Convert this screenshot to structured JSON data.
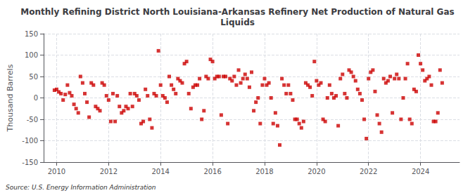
{
  "chart_data": {
    "type": "scatter",
    "title": "Monthly Refining District North Louisiana-Arkansas Refinery Net Production of Natural Gas\nLiquids",
    "ylabel": "Thousand Barrels",
    "annotation": "Source: U.S. Energy Information Administration",
    "color": "#cc0000",
    "marker": "square",
    "grid": true,
    "xlim": [
      2009.5,
      2025.5
    ],
    "xticks": [
      2010,
      2012,
      2014,
      2016,
      2018,
      2020,
      2022,
      2024
    ],
    "ylim": [
      -150,
      150
    ],
    "yticks": [
      -150,
      -100,
      -50,
      0,
      50,
      100,
      150
    ],
    "x": [
      2009.917,
      2010.0,
      2010.083,
      2010.167,
      2010.25,
      2010.333,
      2010.417,
      2010.5,
      2010.583,
      2010.667,
      2010.75,
      2010.833,
      2010.917,
      2011.0,
      2011.083,
      2011.167,
      2011.25,
      2011.333,
      2011.417,
      2011.5,
      2011.583,
      2011.667,
      2011.75,
      2011.833,
      2011.917,
      2012.0,
      2012.083,
      2012.167,
      2012.25,
      2012.333,
      2012.417,
      2012.5,
      2012.583,
      2012.667,
      2012.75,
      2012.833,
      2012.917,
      2013.0,
      2013.083,
      2013.167,
      2013.25,
      2013.333,
      2013.417,
      2013.5,
      2013.583,
      2013.667,
      2013.75,
      2013.833,
      2013.917,
      2014.0,
      2014.083,
      2014.167,
      2014.25,
      2014.333,
      2014.417,
      2014.5,
      2014.583,
      2014.667,
      2014.75,
      2014.833,
      2014.917,
      2015.0,
      2015.083,
      2015.167,
      2015.25,
      2015.333,
      2015.417,
      2015.5,
      2015.583,
      2015.667,
      2015.75,
      2015.833,
      2015.917,
      2016.0,
      2016.083,
      2016.167,
      2016.25,
      2016.333,
      2016.417,
      2016.5,
      2016.583,
      2016.667,
      2016.75,
      2016.833,
      2016.917,
      2017.0,
      2017.083,
      2017.167,
      2017.25,
      2017.333,
      2017.417,
      2017.5,
      2017.583,
      2017.667,
      2017.75,
      2017.833,
      2017.917,
      2018.0,
      2018.083,
      2018.167,
      2018.25,
      2018.333,
      2018.417,
      2018.5,
      2018.583,
      2018.667,
      2018.75,
      2018.833,
      2018.917,
      2019.0,
      2019.083,
      2019.167,
      2019.25,
      2019.333,
      2019.417,
      2019.5,
      2019.583,
      2019.667,
      2019.75,
      2019.833,
      2019.917,
      2020.0,
      2020.083,
      2020.167,
      2020.25,
      2020.333,
      2020.417,
      2020.5,
      2020.583,
      2020.667,
      2020.75,
      2020.833,
      2020.917,
      2021.0,
      2021.083,
      2021.167,
      2021.25,
      2021.333,
      2021.417,
      2021.5,
      2021.583,
      2021.667,
      2021.75,
      2021.833,
      2021.917,
      2022.0,
      2022.083,
      2022.167,
      2022.25,
      2022.333,
      2022.417,
      2022.5,
      2022.583,
      2022.667,
      2022.75,
      2022.833,
      2022.917,
      2023.0,
      2023.083,
      2023.167,
      2023.25,
      2023.333,
      2023.417,
      2023.5,
      2023.583,
      2023.667,
      2023.75,
      2023.833,
      2023.917,
      2024.0,
      2024.083,
      2024.167,
      2024.25,
      2024.333,
      2024.417,
      2024.5,
      2024.583,
      2024.667,
      2024.75,
      2024.833
    ],
    "values": [
      18,
      20,
      14,
      10,
      -5,
      8,
      30,
      12,
      5,
      -15,
      -25,
      -35,
      50,
      35,
      10,
      -10,
      -45,
      35,
      30,
      -20,
      -25,
      -30,
      35,
      30,
      5,
      -5,
      -55,
      10,
      -55,
      5,
      -20,
      -35,
      -30,
      -20,
      -25,
      10,
      -20,
      10,
      5,
      -5,
      -60,
      -55,
      20,
      5,
      -50,
      -70,
      10,
      5,
      110,
      30,
      5,
      0,
      -10,
      50,
      30,
      20,
      10,
      45,
      40,
      35,
      80,
      85,
      10,
      -25,
      25,
      30,
      30,
      45,
      -50,
      -30,
      50,
      45,
      90,
      85,
      45,
      50,
      50,
      -40,
      50,
      50,
      -60,
      45,
      40,
      50,
      30,
      65,
      35,
      45,
      55,
      45,
      25,
      60,
      -30,
      -10,
      0,
      -60,
      30,
      45,
      30,
      35,
      0,
      -60,
      -35,
      -65,
      -110,
      45,
      30,
      10,
      30,
      10,
      -5,
      -50,
      -50,
      -60,
      -70,
      -55,
      35,
      30,
      25,
      5,
      85,
      40,
      30,
      35,
      -50,
      -55,
      0,
      30,
      10,
      0,
      5,
      -65,
      45,
      55,
      10,
      0,
      65,
      60,
      50,
      40,
      20,
      10,
      -5,
      -50,
      -95,
      45,
      60,
      65,
      15,
      -40,
      -60,
      -80,
      45,
      35,
      40,
      50,
      -35,
      45,
      55,
      45,
      -50,
      0,
      45,
      80,
      -50,
      -60,
      20,
      15,
      100,
      80,
      65,
      40,
      45,
      50,
      30,
      -55,
      -55,
      -35,
      65,
      35
    ]
  }
}
